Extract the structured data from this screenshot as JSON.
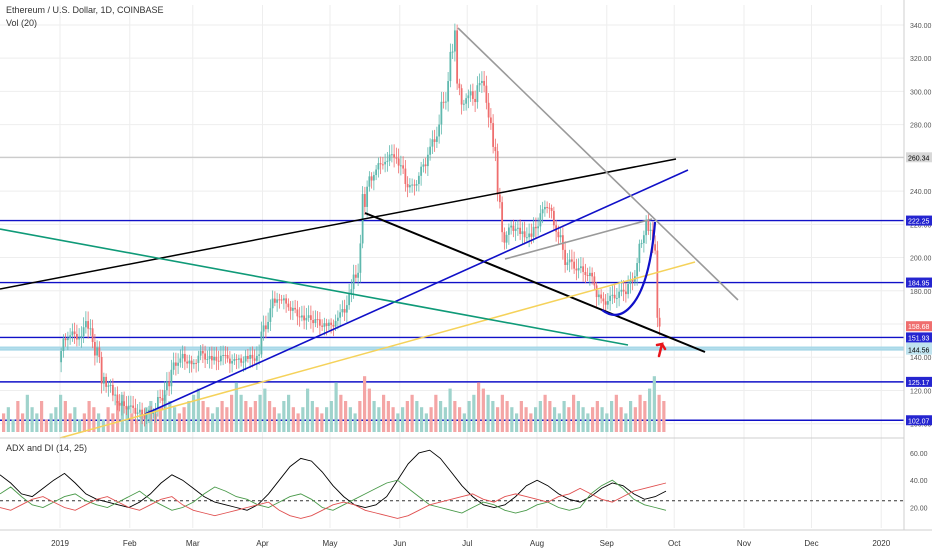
{
  "header": {
    "symbol_line": "Ethereum / U.S. Dollar, 1D, COINBASE",
    "volume_label": "Vol (20)",
    "indicator_label": "ADX and DI (14, 25)"
  },
  "colors": {
    "up": "#5fb8ae",
    "down": "#ef6e6e",
    "vol_up": "#9fd3cc",
    "vol_down": "#f4a5a5",
    "adx": "#000000",
    "di_plus": "#4a9a4a",
    "di_minus": "#e05050",
    "blue_line": "#1010c8",
    "gray_line": "#9a9a9a",
    "yellow_line": "#f5d25a",
    "teal_line": "#0f9a78",
    "arrow": "#e8151b"
  },
  "chart_data": [
    {
      "type": "candlestick",
      "title": "Ethereum / U.S. Dollar, 1D, COINBASE",
      "x_ticks": [
        "2019",
        "Feb",
        "Mar",
        "Apr",
        "May",
        "Jun",
        "Jul",
        "Aug",
        "Sep",
        "Oct",
        "Nov",
        "Dec",
        "2020"
      ],
      "y_ticks": [
        "340.00",
        "320.00",
        "300.00",
        "280.00",
        "260.00",
        "240.00",
        "220.00",
        "200.00",
        "180.00",
        "160.00",
        "140.00",
        "120.00",
        "100.00"
      ],
      "ylim": [
        95,
        352
      ],
      "price_levels": [
        {
          "label": "260.34",
          "value": 260.34
        },
        {
          "label": "222.25",
          "value": 222.25
        },
        {
          "label": "184.95",
          "value": 184.95
        },
        {
          "label": "151.93",
          "value": 151.93
        },
        {
          "label": "145.85",
          "value": 145.85
        },
        {
          "label": "144.56",
          "value": 144.56
        },
        {
          "label": "125.17",
          "value": 125.17
        },
        {
          "label": "102.07",
          "value": 102.07
        }
      ],
      "last_price": {
        "label": "158.68",
        "value": 158.68
      },
      "series": [
        {
          "name": "Ethereum / U.S. Dollar",
          "points": [
            [
              "2019-01-01",
              140
            ],
            [
              "2019-01-05",
              155
            ],
            [
              "2019-01-10",
              152
            ],
            [
              "2019-01-13",
              160
            ],
            [
              "2019-01-15",
              158
            ],
            [
              "2019-01-20",
              130
            ],
            [
              "2019-01-25",
              118
            ],
            [
              "2019-01-28",
              112
            ],
            [
              "2019-02-01",
              110
            ],
            [
              "2019-02-08",
              105
            ],
            [
              "2019-02-12",
              108
            ],
            [
              "2019-02-18",
              122
            ],
            [
              "2019-02-22",
              138
            ],
            [
              "2019-02-25",
              140
            ],
            [
              "2019-03-01",
              135
            ],
            [
              "2019-03-05",
              142
            ],
            [
              "2019-03-10",
              138
            ],
            [
              "2019-03-15",
              140
            ],
            [
              "2019-03-20",
              137
            ],
            [
              "2019-03-25",
              139
            ],
            [
              "2019-03-30",
              140
            ],
            [
              "2019-04-03",
              162
            ],
            [
              "2019-04-08",
              178
            ],
            [
              "2019-04-12",
              172
            ],
            [
              "2019-04-18",
              165
            ],
            [
              "2019-04-25",
              162
            ],
            [
              "2019-04-30",
              158
            ],
            [
              "2019-05-05",
              162
            ],
            [
              "2019-05-10",
              175
            ],
            [
              "2019-05-14",
              195
            ],
            [
              "2019-05-16",
              230
            ],
            [
              "2019-05-20",
              250
            ],
            [
              "2019-05-25",
              258
            ],
            [
              "2019-05-30",
              262
            ],
            [
              "2019-06-02",
              255
            ],
            [
              "2019-06-06",
              240
            ],
            [
              "2019-06-10",
              248
            ],
            [
              "2019-06-14",
              262
            ],
            [
              "2019-06-18",
              275
            ],
            [
              "2019-06-22",
              300
            ],
            [
              "2019-06-24",
              320
            ],
            [
              "2019-06-26",
              336
            ],
            [
              "2019-06-27",
              310
            ],
            [
              "2019-06-30",
              290
            ],
            [
              "2019-07-02",
              300
            ],
            [
              "2019-07-05",
              295
            ],
            [
              "2019-07-08",
              310
            ],
            [
              "2019-07-10",
              290
            ],
            [
              "2019-07-12",
              278
            ],
            [
              "2019-07-14",
              260
            ],
            [
              "2019-07-16",
              230
            ],
            [
              "2019-07-18",
              210
            ],
            [
              "2019-07-20",
              220
            ],
            [
              "2019-07-25",
              215
            ],
            [
              "2019-07-30",
              212
            ],
            [
              "2019-08-03",
              225
            ],
            [
              "2019-08-06",
              232
            ],
            [
              "2019-08-10",
              218
            ],
            [
              "2019-08-14",
              200
            ],
            [
              "2019-08-18",
              195
            ],
            [
              "2019-08-22",
              192
            ],
            [
              "2019-08-26",
              188
            ],
            [
              "2019-08-30",
              172
            ],
            [
              "2019-09-03",
              175
            ],
            [
              "2019-09-07",
              178
            ],
            [
              "2019-09-10",
              180
            ],
            [
              "2019-09-14",
              190
            ],
            [
              "2019-09-17",
              210
            ],
            [
              "2019-09-19",
              220
            ],
            [
              "2019-09-21",
              216
            ],
            [
              "2019-09-23",
              205
            ],
            [
              "2019-09-24",
              168
            ],
            [
              "2019-09-25",
              158
            ]
          ]
        }
      ]
    },
    {
      "type": "bar",
      "title": "Vol (20)",
      "note": "volume histogram, relative heights",
      "values": [
        3,
        4,
        2,
        5,
        3,
        6,
        4,
        3,
        5,
        2,
        3,
        4,
        6,
        5,
        3,
        4,
        2,
        3,
        5,
        4,
        3,
        2,
        4,
        3,
        5,
        6,
        4,
        3,
        2,
        3,
        4,
        5,
        3,
        4,
        6,
        5,
        4,
        3,
        4,
        5,
        6,
        7,
        5,
        4,
        3,
        4,
        5,
        4,
        6,
        8,
        6,
        5,
        4,
        5,
        6,
        7,
        5,
        4,
        3,
        5,
        6,
        4,
        3,
        4,
        7,
        5,
        4,
        3,
        4,
        5,
        8,
        6,
        5,
        4,
        3,
        5,
        9,
        7,
        5,
        4,
        6,
        5,
        4,
        3,
        4,
        5,
        6,
        5,
        4,
        3,
        4,
        6,
        5,
        4,
        7,
        5,
        4,
        3,
        5,
        6,
        8,
        7,
        6,
        5,
        4,
        6,
        5,
        4,
        3,
        5,
        4,
        3,
        4,
        5,
        6,
        5,
        4,
        3,
        5,
        4,
        6,
        5,
        4,
        3,
        4,
        5,
        4,
        3,
        5,
        6,
        4,
        3,
        5,
        4,
        6,
        5,
        7,
        9,
        6,
        5
      ]
    },
    {
      "type": "line",
      "title": "ADX and DI (14, 25)",
      "y_ticks": [
        "60.00",
        "40.00",
        "20.00"
      ],
      "ylim": [
        5,
        68
      ],
      "threshold": 25,
      "series": [
        {
          "name": "ADX",
          "values": [
            44,
            38,
            30,
            28,
            34,
            40,
            45,
            38,
            30,
            26,
            24,
            22,
            20,
            24,
            30,
            38,
            44,
            40,
            34,
            28,
            24,
            22,
            20,
            18,
            22,
            30,
            40,
            50,
            56,
            54,
            46,
            36,
            28,
            22,
            20,
            22,
            28,
            40,
            52,
            60,
            62,
            56,
            46,
            36,
            28,
            22,
            20,
            22,
            28,
            36,
            40,
            36,
            30,
            26,
            24,
            28,
            34,
            38,
            36,
            30,
            26,
            28,
            32
          ]
        },
        {
          "name": "+DI",
          "values": [
            30,
            35,
            28,
            22,
            20,
            24,
            28,
            30,
            25,
            22,
            20,
            24,
            28,
            32,
            26,
            22,
            18,
            20,
            24,
            30,
            35,
            32,
            28,
            26,
            22,
            20,
            24,
            28,
            30,
            26,
            20,
            18,
            22,
            26,
            30,
            34,
            38,
            40,
            34,
            28,
            22,
            20,
            18,
            16,
            20,
            24,
            22,
            18,
            16,
            18,
            22,
            24,
            20,
            18,
            20,
            30,
            36,
            40,
            34,
            26,
            22,
            20,
            18
          ]
        },
        {
          "name": "-DI",
          "values": [
            20,
            18,
            22,
            26,
            28,
            24,
            20,
            18,
            22,
            26,
            28,
            24,
            20,
            18,
            22,
            26,
            28,
            22,
            18,
            16,
            14,
            16,
            18,
            20,
            22,
            24,
            18,
            14,
            12,
            14,
            18,
            22,
            24,
            22,
            18,
            16,
            14,
            12,
            14,
            18,
            22,
            24,
            26,
            28,
            30,
            26,
            24,
            28,
            30,
            28,
            26,
            24,
            28,
            30,
            34,
            30,
            26,
            24,
            28,
            32,
            34,
            36,
            38
          ]
        }
      ]
    }
  ]
}
